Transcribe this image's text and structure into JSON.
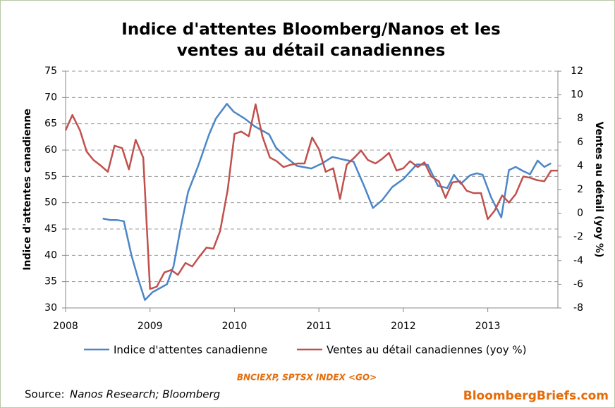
{
  "chart_data": {
    "type": "line",
    "title": "Indice d'attentes Bloomberg/Nanos et les ventes au détail canadiennes",
    "y_label": "Indice d'attentes canadienne",
    "y2_label": "Ventes au détail (yoy %)",
    "annotation": "BNCIEXP, SPTSX INDEX <GO>",
    "source_label": "Source:",
    "source": "Nanos Research;  Bloomberg",
    "brand": "BloombergBriefs.com",
    "xlim": [
      2008,
      2013.83
    ],
    "xticks": [
      2008,
      2009,
      2010,
      2011,
      2012,
      2013
    ],
    "ylim": [
      30,
      75
    ],
    "yticks": [
      30,
      35,
      40,
      45,
      50,
      55,
      60,
      65,
      70,
      75
    ],
    "y2lim": [
      -8,
      12
    ],
    "y2ticks": [
      -8,
      -6,
      -4,
      -2,
      0,
      2,
      4,
      6,
      8,
      10,
      12
    ],
    "grid": true,
    "legend": "bottom",
    "series": [
      {
        "name": "Indice d'attentes canadienne",
        "color": "#4a86c8",
        "axis": "y",
        "x": [
          2008.44,
          2008.53,
          2008.61,
          2008.69,
          2008.78,
          2008.86,
          2008.94,
          2009.03,
          2009.2,
          2009.28,
          2009.36,
          2009.45,
          2009.57,
          2009.7,
          2009.78,
          2009.91,
          2009.99,
          2010.12,
          2010.24,
          2010.41,
          2010.49,
          2010.62,
          2010.74,
          2010.91,
          2011.04,
          2011.16,
          2011.29,
          2011.41,
          2011.54,
          2011.64,
          2011.75,
          2011.87,
          2012.0,
          2012.16,
          2012.29,
          2012.41,
          2012.52,
          2012.6,
          2012.68,
          2012.79,
          2012.87,
          2012.94,
          2013.04,
          2013.16,
          2013.25,
          2013.33,
          2013.42,
          2013.5,
          2013.59,
          2013.67,
          2013.75
        ],
        "values": [
          47,
          46.7,
          46.7,
          46.5,
          40,
          35.5,
          31.5,
          33,
          34.5,
          38,
          45,
          52,
          57,
          63,
          66,
          68.8,
          67.3,
          66,
          64.5,
          63,
          60.5,
          58.5,
          57,
          56.5,
          57.5,
          58.7,
          58.2,
          57.8,
          53,
          49,
          50.5,
          53,
          54.5,
          57.3,
          57.2,
          53.2,
          52.8,
          55.3,
          53.6,
          55.2,
          55.6,
          55.3,
          51,
          47.2,
          56.2,
          56.8,
          56,
          55.4,
          58,
          56.8,
          57.5
        ]
      },
      {
        "name": "Ventes au détail canadiennes (yoy %)",
        "color": "#c0504d",
        "axis": "y2",
        "x": [
          2008.0,
          2008.08,
          2008.17,
          2008.25,
          2008.33,
          2008.42,
          2008.5,
          2008.58,
          2008.67,
          2008.75,
          2008.83,
          2008.92,
          2009.0,
          2009.08,
          2009.17,
          2009.25,
          2009.33,
          2009.42,
          2009.5,
          2009.58,
          2009.67,
          2009.75,
          2009.83,
          2009.92,
          2010.0,
          2010.08,
          2010.17,
          2010.25,
          2010.33,
          2010.42,
          2010.5,
          2010.58,
          2010.67,
          2010.75,
          2010.83,
          2010.92,
          2011.0,
          2011.08,
          2011.17,
          2011.25,
          2011.33,
          2011.42,
          2011.5,
          2011.58,
          2011.67,
          2011.75,
          2011.83,
          2011.92,
          2012.0,
          2012.08,
          2012.17,
          2012.25,
          2012.33,
          2012.42,
          2012.5,
          2012.58,
          2012.67,
          2012.75,
          2012.83,
          2012.92,
          2013.0,
          2013.08,
          2013.17,
          2013.25,
          2013.33,
          2013.42,
          2013.5,
          2013.58,
          2013.67,
          2013.75,
          2013.83
        ],
        "values": [
          7.0,
          8.3,
          7.0,
          5.2,
          4.5,
          4.0,
          3.5,
          5.7,
          5.5,
          3.7,
          6.2,
          4.7,
          -6.4,
          -6.2,
          -5.0,
          -4.8,
          -5.2,
          -4.2,
          -4.5,
          -3.7,
          -2.9,
          -3.0,
          -1.5,
          2.0,
          6.7,
          6.9,
          6.5,
          9.2,
          6.5,
          4.7,
          4.4,
          3.9,
          4.1,
          4.2,
          4.2,
          6.4,
          5.4,
          3.5,
          3.8,
          1.2,
          4.1,
          4.7,
          5.3,
          4.5,
          4.2,
          4.6,
          5.1,
          3.6,
          3.8,
          4.4,
          3.9,
          4.3,
          3.1,
          2.7,
          1.3,
          2.6,
          2.7,
          1.9,
          1.7,
          1.7,
          -0.5,
          0.2,
          1.5,
          0.9,
          1.6,
          3.1,
          3.0,
          2.8,
          2.7,
          3.6,
          3.6
        ]
      }
    ]
  }
}
